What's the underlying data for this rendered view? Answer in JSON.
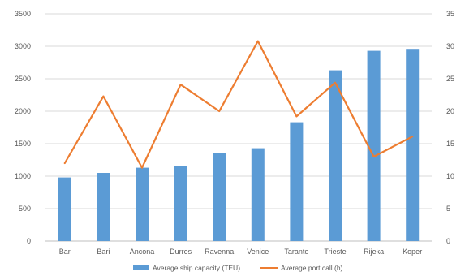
{
  "chart_data": {
    "type": "bar+line",
    "categories": [
      "Bar",
      "Bari",
      "Ancona",
      "Durres",
      "Ravenna",
      "Venice",
      "Taranto",
      "Trieste",
      "Rijeka",
      "Koper"
    ],
    "series": [
      {
        "name": "Average ship capacity (TEU)",
        "type": "bar",
        "axis": "left",
        "color": "#5b9bd5",
        "values": [
          980,
          1050,
          1130,
          1160,
          1350,
          1430,
          1830,
          2630,
          2930,
          2960
        ]
      },
      {
        "name": "Average port call (h)",
        "type": "line",
        "axis": "right",
        "color": "#ed7d31",
        "values": [
          12,
          22.3,
          11.3,
          24.1,
          20,
          30.8,
          19.2,
          24.4,
          13,
          16.1
        ]
      }
    ],
    "y_left": {
      "min": 0,
      "max": 3500,
      "ticks": [
        0,
        500,
        1000,
        1500,
        2000,
        2500,
        3000,
        3500
      ]
    },
    "y_right": {
      "min": 0,
      "max": 35,
      "ticks": [
        0,
        5,
        10,
        15,
        20,
        25,
        30,
        35
      ]
    },
    "grid": true,
    "legend": "bottom"
  }
}
